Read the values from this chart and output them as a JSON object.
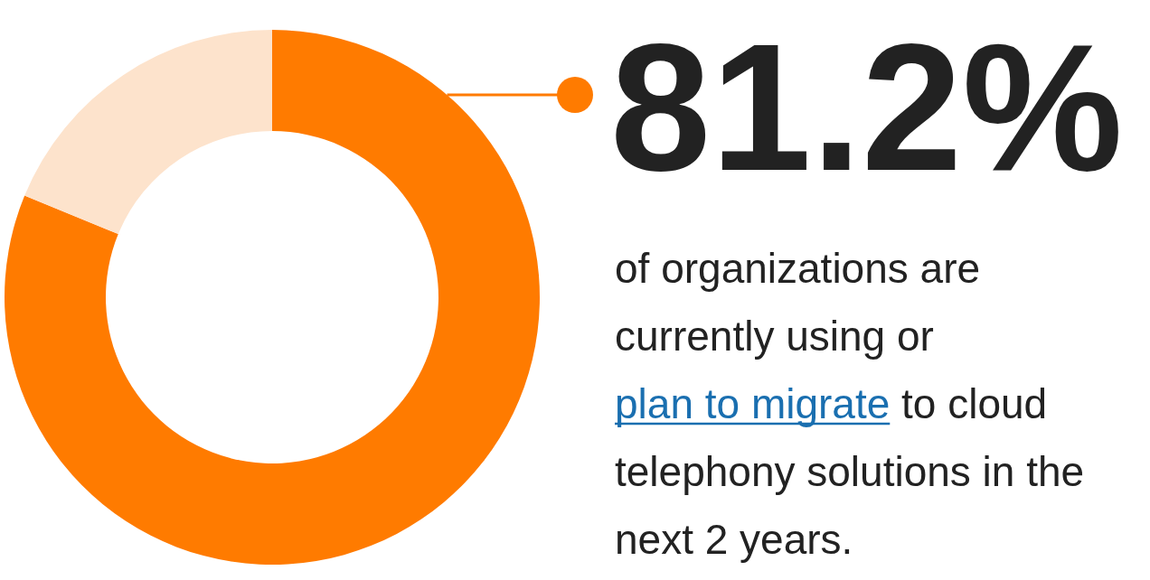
{
  "chart_data": {
    "type": "donut",
    "categories": [
      null,
      null
    ],
    "values": [
      81.2,
      18.8
    ],
    "colors": [
      "#ff7b00",
      "#fde3cc"
    ],
    "value_labels": [
      "81.2%",
      null
    ],
    "annotations": [
      "of organizations are currently using or",
      "plan to migrate",
      "to cloud telephony solutions in the next 2 years."
    ]
  }
}
